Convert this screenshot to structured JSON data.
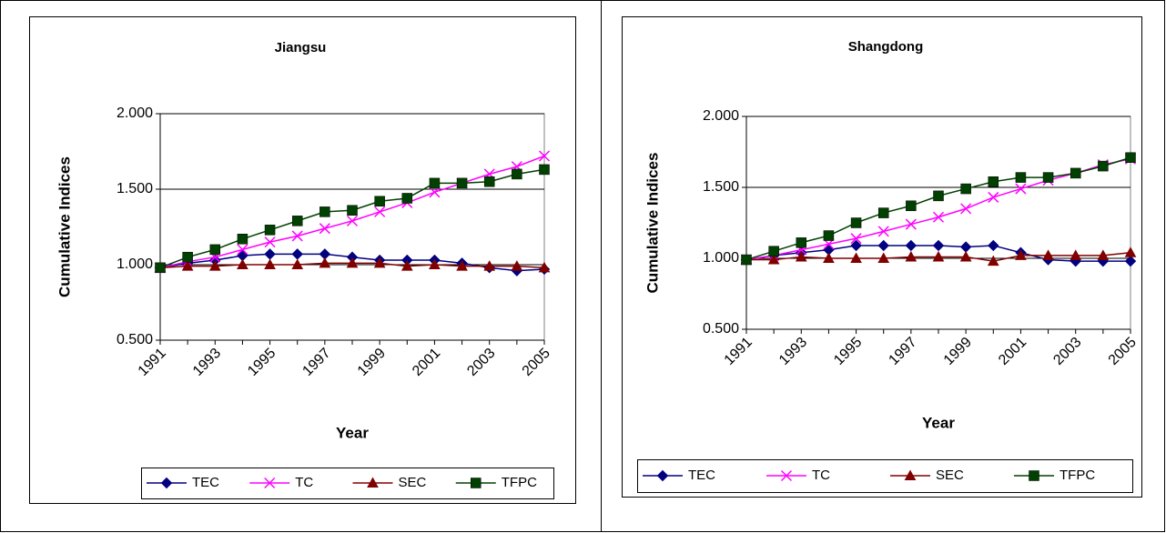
{
  "chart_data": [
    {
      "type": "line",
      "title": "Jiangsu",
      "x_label": "Year",
      "y_label": "Cumulative Indices",
      "categories": [
        "1991",
        null,
        "1993",
        null,
        "1995",
        null,
        "1997",
        null,
        "1999",
        null,
        "2001",
        null,
        "2003",
        null,
        "2005"
      ],
      "ylim": [
        0.5,
        2
      ],
      "yticks": [
        {
          "value": 0.5,
          "label": "0.500"
        },
        {
          "value": 1,
          "label": "1.000"
        },
        {
          "value": 1.5,
          "label": "1.500"
        },
        {
          "value": 2,
          "label": "2.000"
        }
      ],
      "grid": true,
      "legend": "bottom",
      "series": [
        {
          "name": "TEC",
          "color": "#000080",
          "marker": "diamond",
          "values": [
            0.98,
            1.01,
            1.03,
            1.06,
            1.07,
            1.07,
            1.07,
            1.05,
            1.03,
            1.03,
            1.03,
            1.01,
            0.98,
            0.96,
            0.97
          ]
        },
        {
          "name": "TC",
          "color": "#ff00ff",
          "marker": "x",
          "values": [
            0.98,
            1.02,
            1.05,
            1.1,
            1.15,
            1.19,
            1.24,
            1.29,
            1.35,
            1.41,
            1.48,
            1.54,
            1.6,
            1.65,
            1.72
          ]
        },
        {
          "name": "SEC",
          "color": "#800000",
          "marker": "triangle",
          "values": [
            0.98,
            0.99,
            0.99,
            1.0,
            1.0,
            1.0,
            1.01,
            1.01,
            1.01,
            0.99,
            1.0,
            0.99,
            0.99,
            0.99,
            0.98
          ]
        },
        {
          "name": "TFPC",
          "color": "#004000",
          "marker": "square",
          "values": [
            0.98,
            1.05,
            1.1,
            1.17,
            1.23,
            1.29,
            1.35,
            1.36,
            1.42,
            1.44,
            1.54,
            1.54,
            1.55,
            1.6,
            1.63
          ]
        }
      ]
    },
    {
      "type": "line",
      "title": "Shangdong",
      "x_label": "Year",
      "y_label": "Cumulative Indices",
      "categories": [
        "1991",
        null,
        "1993",
        null,
        "1995",
        null,
        "1997",
        null,
        "1999",
        null,
        "2001",
        null,
        "2003",
        null,
        "2005"
      ],
      "ylim": [
        0.5,
        2
      ],
      "yticks": [
        {
          "value": 0.5,
          "label": "0.500"
        },
        {
          "value": 1,
          "label": "1.000"
        },
        {
          "value": 1.5,
          "label": "1.500"
        },
        {
          "value": 2,
          "label": "2.000"
        }
      ],
      "grid": true,
      "legend": "bottom",
      "series": [
        {
          "name": "TEC",
          "color": "#000080",
          "marker": "diamond",
          "values": [
            0.99,
            1.02,
            1.04,
            1.06,
            1.09,
            1.09,
            1.09,
            1.09,
            1.08,
            1.09,
            1.04,
            0.99,
            0.98,
            0.98,
            0.98
          ]
        },
        {
          "name": "TC",
          "color": "#ff00ff",
          "marker": "x",
          "values": [
            0.99,
            1.02,
            1.06,
            1.1,
            1.14,
            1.19,
            1.24,
            1.29,
            1.35,
            1.43,
            1.49,
            1.55,
            1.6,
            1.66,
            1.7
          ]
        },
        {
          "name": "SEC",
          "color": "#800000",
          "marker": "triangle",
          "values": [
            0.99,
            0.99,
            1.01,
            1.0,
            1.0,
            1.0,
            1.01,
            1.01,
            1.01,
            0.98,
            1.02,
            1.02,
            1.02,
            1.02,
            1.04
          ]
        },
        {
          "name": "TFPC",
          "color": "#004000",
          "marker": "square",
          "values": [
            0.99,
            1.05,
            1.11,
            1.16,
            1.25,
            1.32,
            1.37,
            1.44,
            1.49,
            1.54,
            1.57,
            1.57,
            1.6,
            1.65,
            1.71
          ]
        }
      ]
    }
  ]
}
